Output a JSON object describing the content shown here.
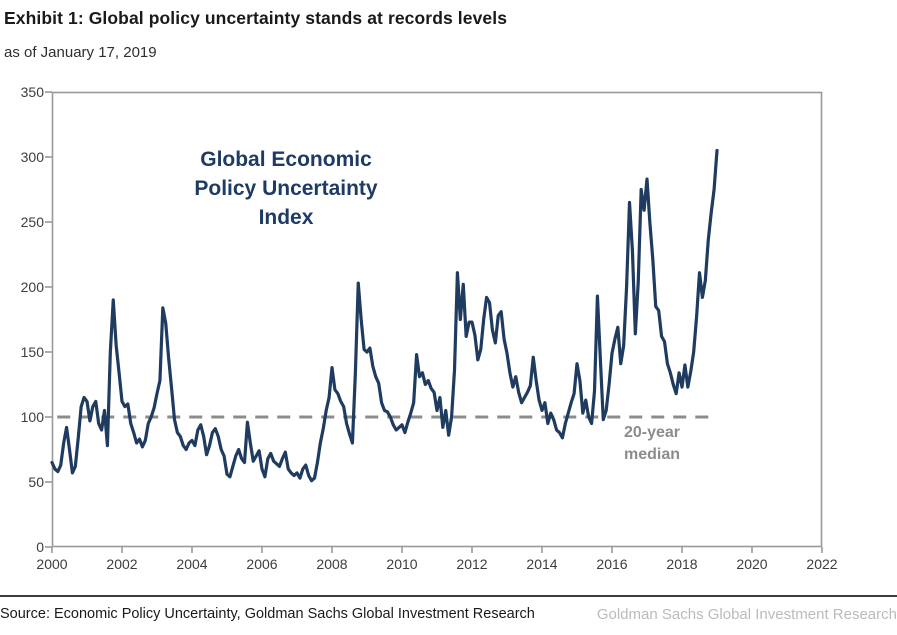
{
  "header": {
    "title": "Exhibit 1: Global policy uncertainty stands at records levels",
    "subtitle": "as of January 17, 2019"
  },
  "chart_data": {
    "type": "line",
    "title": "Exhibit 1: Global policy uncertainty stands at records levels",
    "subtitle": "as of January 17, 2019",
    "annotation": "Global Economic\nPolicy Uncertainty\nIndex",
    "xlim": [
      2000,
      2022
    ],
    "ylim": [
      0,
      350
    ],
    "y_ticks": [
      0,
      50,
      100,
      150,
      200,
      250,
      300,
      350
    ],
    "x_ticks": [
      2000,
      2002,
      2004,
      2006,
      2008,
      2010,
      2012,
      2014,
      2016,
      2018,
      2020,
      2022
    ],
    "grid": false,
    "legend": "none",
    "median_line": {
      "value": 100,
      "label": "20-year\nmedian",
      "span_years": [
        2000.15,
        2018.8
      ],
      "style": "dashed"
    },
    "series": [
      {
        "name": "Global Economic Policy Uncertainty Index",
        "frequency": "monthly",
        "start_year": 2000,
        "end_label": "January 2019",
        "values": [
          65,
          60,
          58,
          63,
          80,
          92,
          75,
          57,
          62,
          84,
          108,
          115,
          112,
          97,
          108,
          112,
          95,
          90,
          105,
          78,
          150,
          190,
          155,
          134,
          112,
          108,
          110,
          95,
          88,
          80,
          83,
          77,
          82,
          95,
          100,
          107,
          118,
          128,
          184,
          172,
          145,
          122,
          98,
          88,
          85,
          78,
          75,
          80,
          82,
          78,
          90,
          94,
          85,
          71,
          78,
          88,
          91,
          85,
          75,
          70,
          56,
          54,
          62,
          70,
          75,
          68,
          65,
          96,
          80,
          66,
          70,
          74,
          60,
          54,
          68,
          72,
          66,
          64,
          62,
          68,
          73,
          60,
          57,
          55,
          57,
          53,
          60,
          63,
          55,
          51,
          53,
          65,
          80,
          91,
          105,
          115,
          138,
          121,
          118,
          112,
          108,
          95,
          87,
          80,
          133,
          203,
          175,
          152,
          150,
          153,
          139,
          131,
          126,
          111,
          105,
          104,
          100,
          94,
          90,
          92,
          94,
          88,
          96,
          103,
          111,
          148,
          131,
          134,
          125,
          128,
          122,
          119,
          105,
          115,
          92,
          105,
          86,
          100,
          136,
          211,
          175,
          202,
          162,
          173,
          173,
          163,
          144,
          152,
          175,
          192,
          188,
          167,
          157,
          178,
          181,
          160,
          149,
          134,
          123,
          131,
          119,
          111,
          115,
          119,
          124,
          146,
          128,
          113,
          105,
          111,
          95,
          103,
          98,
          90,
          88,
          84,
          95,
          103,
          111,
          118,
          141,
          128,
          103,
          113,
          100,
          95,
          120,
          193,
          145,
          98,
          105,
          125,
          149,
          160,
          169,
          141,
          155,
          200,
          265,
          228,
          164,
          204,
          275,
          259,
          283,
          249,
          221,
          185,
          182,
          162,
          158,
          141,
          134,
          125,
          118,
          134,
          123,
          140,
          123,
          135,
          150,
          177,
          211,
          192,
          205,
          236,
          257,
          275,
          305
        ]
      }
    ],
    "colors": {
      "line": "#1F3B60",
      "annotation_text": "#1E3A66",
      "median_line": "#8C8C8C",
      "median_label": "#8C8C8C",
      "frame": "#9A9A9A",
      "tick_label": "#3D3D3D"
    }
  },
  "footer": {
    "source": "Source: Economic Policy Uncertainty, Goldman Sachs Global Investment Research",
    "watermark": "Goldman Sachs Global Investment Research"
  }
}
